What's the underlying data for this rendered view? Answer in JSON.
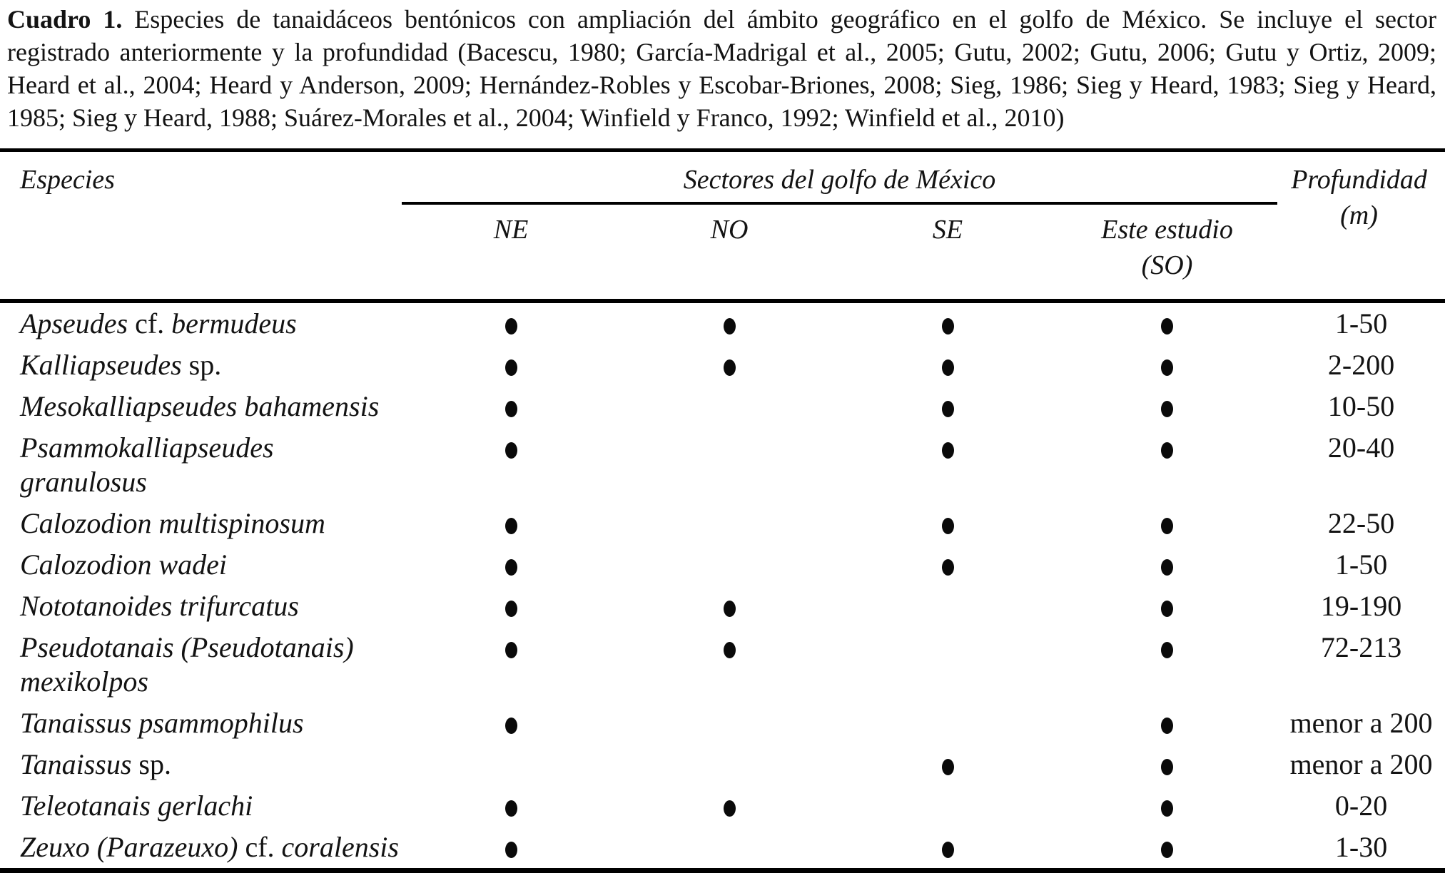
{
  "caption": {
    "label": "Cuadro 1.",
    "text": " Especies de tanaidáceos bentónicos con ampliación del ámbito geográfico en el golfo de México. Se incluye el sector registrado anteriormente y la profundidad (Bacescu, 1980; García-Madrigal et al., 2005; Gutu, 2002; Gutu, 2006; Gutu y Ortiz, 2009; Heard et al., 2004; Heard y Anderson, 2009; Hernández-Robles y Escobar-Briones, 2008; Sieg, 1986; Sieg y Heard, 1983; Sieg y Heard, 1985; Sieg y Heard, 1988; Suárez-Morales et al., 2004; Winfield y Franco, 1992; Winfield et al., 2010)"
  },
  "table": {
    "columns": {
      "species": "Especies",
      "sector_group": "Sectores del golfo de México",
      "sub_headers": [
        {
          "label": "NE"
        },
        {
          "label": "NO"
        },
        {
          "label": "SE"
        },
        {
          "label": "Este estudio",
          "sub": "(SO)"
        }
      ],
      "depth_label": "Profundidad",
      "depth_unit": "(m)"
    },
    "presence_marker": "●",
    "rows": [
      {
        "name_parts": [
          {
            "text": "Apseudes",
            "style": "italic"
          },
          {
            "text": " cf. ",
            "style": "roman"
          },
          {
            "text": "bermudeus",
            "style": "italic"
          }
        ],
        "sectors": [
          true,
          true,
          true,
          true
        ],
        "depth": "1-50"
      },
      {
        "name_parts": [
          {
            "text": "Kalliapseudes",
            "style": "italic"
          },
          {
            "text": " sp.",
            "style": "roman"
          }
        ],
        "sectors": [
          true,
          true,
          true,
          true
        ],
        "depth": "2-200"
      },
      {
        "name_parts": [
          {
            "text": "Mesokalliapseudes bahamensis",
            "style": "italic"
          }
        ],
        "sectors": [
          true,
          false,
          true,
          true
        ],
        "depth": "10-50"
      },
      {
        "name_parts": [
          {
            "text": "Psammokalliapseudes granulosus",
            "style": "italic"
          }
        ],
        "sectors": [
          true,
          false,
          true,
          true
        ],
        "depth": "20-40"
      },
      {
        "name_parts": [
          {
            "text": "Calozodion multispinosum",
            "style": "italic"
          }
        ],
        "sectors": [
          true,
          false,
          true,
          true
        ],
        "depth": "22-50"
      },
      {
        "name_parts": [
          {
            "text": "Calozodion wadei",
            "style": "italic"
          }
        ],
        "sectors": [
          true,
          false,
          true,
          true
        ],
        "depth": "1-50"
      },
      {
        "name_parts": [
          {
            "text": "Nototanoides trifurcatus",
            "style": "italic"
          }
        ],
        "sectors": [
          true,
          true,
          false,
          true
        ],
        "depth": "19-190"
      },
      {
        "name_parts": [
          {
            "text": "Pseudotanais (Pseudotanais)",
            "style": "italic"
          },
          {
            "style": "break"
          },
          {
            "text": "mexikolpos",
            "style": "italic"
          }
        ],
        "sectors": [
          true,
          true,
          false,
          true
        ],
        "depth": "72-213"
      },
      {
        "name_parts": [
          {
            "text": "Tanaissus psammophilus",
            "style": "italic"
          }
        ],
        "sectors": [
          true,
          false,
          false,
          true
        ],
        "depth": "menor a 200"
      },
      {
        "name_parts": [
          {
            "text": "Tanaissus",
            "style": "italic"
          },
          {
            "text": " sp.",
            "style": "roman"
          }
        ],
        "sectors": [
          false,
          false,
          true,
          true
        ],
        "depth": "menor a 200"
      },
      {
        "name_parts": [
          {
            "text": "Teleotanais gerlachi",
            "style": "italic"
          }
        ],
        "sectors": [
          true,
          true,
          false,
          true
        ],
        "depth": "0-20"
      },
      {
        "name_parts": [
          {
            "text": "Zeuxo (Parazeuxo)",
            "style": "italic"
          },
          {
            "text": " cf. ",
            "style": "roman"
          },
          {
            "text": "coralensis",
            "style": "italic"
          }
        ],
        "sectors": [
          true,
          false,
          true,
          true
        ],
        "depth": "1-30"
      }
    ]
  },
  "colors": {
    "text": "#131313",
    "rule": "#000000",
    "background": "#ffffff"
  }
}
